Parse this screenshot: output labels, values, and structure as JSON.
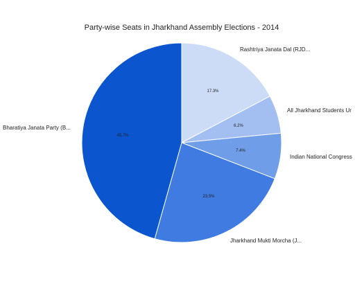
{
  "chart_data": {
    "type": "pie",
    "title": "Party-wise Seats in Jharkhand Assembly Elections - 2014",
    "slices": [
      {
        "label": "Rashtriya Janata Dal (RJD...",
        "value": 17.3,
        "value_label": "17.3%",
        "color": "#ccdcf6"
      },
      {
        "label": "All Jharkhand Students Ur",
        "value": 6.2,
        "value_label": "6.2%",
        "color": "#a3bff1"
      },
      {
        "label": "Indian National Congress",
        "value": 7.4,
        "value_label": "7.4%",
        "color": "#709de8"
      },
      {
        "label": "Jharkhand Mukti Morcha (J...",
        "value": 23.5,
        "value_label": "23.5%",
        "color": "#3f7be0"
      },
      {
        "label": "Bharatiya Janata Party (B...",
        "value": 45.7,
        "value_label": "45.7%",
        "color": "#0b56cf"
      }
    ]
  }
}
